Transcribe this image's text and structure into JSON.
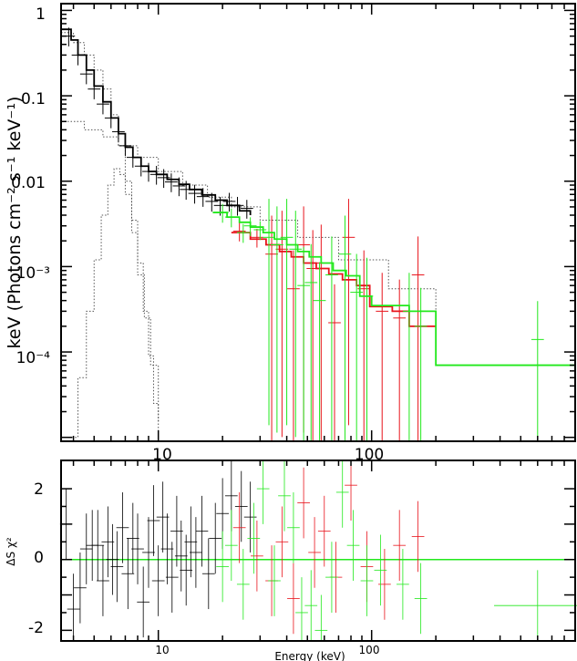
{
  "colors": {
    "black_data": "#000000",
    "red_data": "#e8141c",
    "green_data": "#22e81c",
    "model_dotted": "#555555",
    "zero_line": "#22e81c"
  },
  "chart_data": [
    {
      "type": "line",
      "panel": "spectrum",
      "xscale": "log",
      "yscale": "log",
      "xlim": [
        3.5,
        900
      ],
      "ylim": [
        9e-06,
        1.2
      ],
      "xlabel": "",
      "ylabel": "keV (Photons cm⁻² s⁻¹ keV⁻¹)",
      "xticks": [
        10,
        100
      ],
      "xtick_labels": [
        "10",
        "100"
      ],
      "yticks": [
        1,
        0.1,
        0.01,
        0.001,
        0.0001
      ],
      "ytick_labels": [
        "1",
        "0.1",
        "0.01",
        "10⁻³",
        "10⁻⁴"
      ],
      "grid": false,
      "series": [
        {
          "color": "black",
          "points": [
            [
              3.8,
              0.5
            ],
            [
              4.2,
              0.3
            ],
            [
              4.6,
              0.18
            ],
            [
              5.0,
              0.12
            ],
            [
              5.5,
              0.08
            ],
            [
              6.0,
              0.055
            ],
            [
              6.5,
              0.038
            ],
            [
              7.0,
              0.026
            ],
            [
              7.6,
              0.019
            ],
            [
              8.3,
              0.015
            ],
            [
              9.0,
              0.013
            ],
            [
              9.8,
              0.012
            ],
            [
              10.6,
              0.011
            ],
            [
              11.5,
              0.0098
            ],
            [
              12.5,
              0.0088
            ],
            [
              13.5,
              0.008
            ],
            [
              14.8,
              0.0072
            ],
            [
              16.2,
              0.0066
            ],
            [
              17.8,
              0.0058
            ],
            [
              19.5,
              0.0052
            ],
            [
              21.5,
              0.0058
            ],
            [
              23.5,
              0.0052
            ],
            [
              26.0,
              0.0048
            ]
          ],
          "model_steps": [
            [
              3.5,
              0.6
            ],
            [
              3.9,
              0.45
            ],
            [
              4.2,
              0.3
            ],
            [
              4.6,
              0.2
            ],
            [
              5.0,
              0.13
            ],
            [
              5.5,
              0.085
            ],
            [
              6.0,
              0.055
            ],
            [
              6.5,
              0.036
            ],
            [
              7.0,
              0.025
            ],
            [
              7.6,
              0.019
            ],
            [
              8.3,
              0.015
            ],
            [
              9.0,
              0.013
            ],
            [
              9.8,
              0.012
            ],
            [
              11.0,
              0.0105
            ],
            [
              12.5,
              0.0092
            ],
            [
              14.0,
              0.008
            ],
            [
              16.0,
              0.0069
            ],
            [
              18.5,
              0.006
            ],
            [
              21.0,
              0.0052
            ],
            [
              24.0,
              0.0045
            ],
            [
              27.0,
              0.004
            ]
          ]
        },
        {
          "color": "red",
          "points": [
            [
              24.0,
              0.0026
            ],
            [
              29.0,
              0.0022
            ],
            [
              34.0,
              0.0014
            ],
            [
              38.0,
              0.0016
            ],
            [
              43.0,
              0.00055
            ],
            [
              48.0,
              0.0018
            ],
            [
              53.0,
              0.00095
            ],
            [
              58.0,
              0.0011
            ],
            [
              67.0,
              0.00022
            ],
            [
              78.0,
              0.0022
            ],
            [
              92.0,
              0.00055
            ],
            [
              112.0,
              0.0003
            ],
            [
              135.0,
              0.00025
            ],
            [
              165.0,
              0.0008
            ]
          ],
          "model_steps": [
            [
              22.0,
              0.0025
            ],
            [
              27.0,
              0.0021
            ],
            [
              32.0,
              0.0018
            ],
            [
              37.0,
              0.0015
            ],
            [
              42.0,
              0.0013
            ],
            [
              48.0,
              0.0011
            ],
            [
              55.0,
              0.00095
            ],
            [
              63.0,
              0.00082
            ],
            [
              73.0,
              0.0007
            ],
            [
              85.0,
              0.0006
            ],
            [
              98.0,
              0.00034
            ],
            [
              125.0,
              0.0003
            ],
            [
              150.0,
              0.0002
            ],
            [
              200.0,
              0.0002
            ]
          ]
        },
        {
          "color": "green",
          "points": [
            [
              20.0,
              0.0043
            ],
            [
              22.0,
              0.0038
            ],
            [
              25.0,
              0.0025
            ],
            [
              27.0,
              0.003
            ],
            [
              30.0,
              0.0027
            ],
            [
              33.0,
              0.0022
            ],
            [
              36.0,
              0.0018
            ],
            [
              40.0,
              0.0022
            ],
            [
              44.0,
              0.0016
            ],
            [
              48.0,
              0.0006
            ],
            [
              52.0,
              0.00065
            ],
            [
              57.0,
              0.0004
            ],
            [
              65.0,
              0.0008
            ],
            [
              75.0,
              0.0014
            ],
            [
              85.0,
              0.0005
            ],
            [
              95.0,
              0.00045
            ],
            [
              150.0,
              0.0003
            ],
            [
              170.0,
              0.0002
            ],
            [
              600.0,
              0.00014
            ]
          ],
          "model_steps": [
            [
              18.0,
              0.0043
            ],
            [
              21.0,
              0.0038
            ],
            [
              24.0,
              0.0033
            ],
            [
              27.0,
              0.0029
            ],
            [
              31.0,
              0.0025
            ],
            [
              35.0,
              0.0021
            ],
            [
              40.0,
              0.0018
            ],
            [
              45.0,
              0.0015
            ],
            [
              51.0,
              0.0013
            ],
            [
              58.0,
              0.0011
            ],
            [
              66.0,
              0.0009
            ],
            [
              76.0,
              0.00078
            ],
            [
              88.0,
              0.00045
            ],
            [
              100.0,
              0.00035
            ],
            [
              150.0,
              0.0003
            ],
            [
              200.0,
              7e-05
            ],
            [
              900.0,
              7e-05
            ]
          ]
        },
        {
          "component": "dotted model components",
          "color": "dotted",
          "curves": [
            [
              [
                3.5,
                0.55
              ],
              [
                4.0,
                0.42
              ],
              [
                4.5,
                0.3
              ],
              [
                5.0,
                0.2
              ],
              [
                5.5,
                0.12
              ],
              [
                6.0,
                0.06
              ],
              [
                6.5,
                0.026
              ],
              [
                7.0,
                0.01
              ],
              [
                7.5,
                0.0035
              ],
              [
                8.0,
                0.0011
              ],
              [
                8.5,
                0.0003
              ],
              [
                9.0,
                9e-05
              ],
              [
                9.5,
                2.5e-05
              ],
              [
                10.0,
                1.2e-05
              ]
            ],
            [
              [
                3.5,
                0.05
              ],
              [
                4.5,
                0.04
              ],
              [
                5.5,
                0.033
              ],
              [
                6.5,
                0.026
              ],
              [
                8.0,
                0.019
              ],
              [
                10.0,
                0.013
              ],
              [
                13.0,
                0.009
              ],
              [
                17.0,
                0.0065
              ],
              [
                22.0,
                0.005
              ],
              [
                30.0,
                0.0035
              ],
              [
                45.0,
                0.0022
              ],
              [
                70.0,
                0.0012
              ],
              [
                120.0,
                0.00055
              ],
              [
                200.0,
                0.0003
              ]
            ],
            [
              [
                3.8,
                1e-05
              ],
              [
                4.2,
                5e-05
              ],
              [
                4.6,
                0.0003
              ],
              [
                5.0,
                0.0012
              ],
              [
                5.4,
                0.004
              ],
              [
                5.8,
                0.009
              ],
              [
                6.2,
                0.014
              ],
              [
                6.6,
                0.012
              ],
              [
                7.0,
                0.007
              ],
              [
                7.5,
                0.0025
              ],
              [
                8.0,
                0.0008
              ],
              [
                8.6,
                0.00025
              ],
              [
                9.2,
                7e-05
              ],
              [
                10.0,
                1.5e-05
              ]
            ]
          ]
        }
      ]
    },
    {
      "type": "scatter",
      "panel": "residuals",
      "xscale": "log",
      "xlim": [
        3.5,
        900
      ],
      "ylim": [
        -2.3,
        2.8
      ],
      "xlabel": "Energy (keV)",
      "ylabel": "ΔS χ²",
      "xticks": [
        10,
        100
      ],
      "xtick_labels": [
        "10",
        "100"
      ],
      "yticks": [
        2,
        0,
        -2
      ],
      "ytick_labels": [
        "2",
        "0",
        "-2"
      ],
      "reference_line": 0,
      "series": [
        {
          "color": "black",
          "points": [
            [
              3.7,
              1.0
            ],
            [
              4.0,
              -1.4
            ],
            [
              4.3,
              -0.8
            ],
            [
              4.6,
              0.3
            ],
            [
              4.9,
              0.4
            ],
            [
              5.2,
              0.4
            ],
            [
              5.5,
              -0.6
            ],
            [
              5.8,
              0.5
            ],
            [
              6.1,
              0.0
            ],
            [
              6.4,
              -0.2
            ],
            [
              6.8,
              0.9
            ],
            [
              7.2,
              -0.4
            ],
            [
              7.6,
              0.6
            ],
            [
              8.0,
              0.3
            ],
            [
              8.5,
              -1.2
            ],
            [
              9.0,
              0.2
            ],
            [
              9.5,
              1.1
            ],
            [
              10.0,
              -0.6
            ],
            [
              10.5,
              1.2
            ],
            [
              11.0,
              0.3
            ],
            [
              11.6,
              -0.5
            ],
            [
              12.2,
              0.8
            ],
            [
              12.8,
              0.1
            ],
            [
              13.5,
              -0.3
            ],
            [
              14.2,
              0.5
            ],
            [
              15.0,
              0.2
            ],
            [
              16.0,
              0.8
            ],
            [
              17.2,
              -0.4
            ],
            [
              18.5,
              0.6
            ],
            [
              20.0,
              1.3
            ],
            [
              22.0,
              1.8
            ],
            [
              24.5,
              1.5
            ],
            [
              27.0,
              1.2
            ]
          ]
        },
        {
          "color": "red",
          "points": [
            [
              24.0,
              0.9
            ],
            [
              29.0,
              0.1
            ],
            [
              34.0,
              -0.6
            ],
            [
              38.0,
              0.5
            ],
            [
              43.0,
              -1.1
            ],
            [
              48.0,
              1.6
            ],
            [
              54.0,
              0.2
            ],
            [
              60.0,
              0.8
            ],
            [
              68.0,
              -0.5
            ],
            [
              80.0,
              2.1
            ],
            [
              95.0,
              -0.2
            ],
            [
              115.0,
              -0.7
            ],
            [
              135.0,
              0.4
            ],
            [
              165.0,
              0.65
            ]
          ]
        },
        {
          "color": "green",
          "points": [
            [
              20.0,
              -0.2
            ],
            [
              22.0,
              0.4
            ],
            [
              25.0,
              -0.7
            ],
            [
              28.0,
              0.6
            ],
            [
              31.0,
              2.0
            ],
            [
              35.0,
              -0.6
            ],
            [
              39.0,
              1.8
            ],
            [
              43.0,
              0.9
            ],
            [
              47.0,
              -1.5
            ],
            [
              52.0,
              -1.3
            ],
            [
              58.0,
              -2.0
            ],
            [
              65.0,
              -0.5
            ],
            [
              73.0,
              1.9
            ],
            [
              82.0,
              0.4
            ],
            [
              95.0,
              -0.6
            ],
            [
              110.0,
              -0.3
            ],
            [
              140.0,
              -0.7
            ],
            [
              170.0,
              -1.1
            ],
            [
              600.0,
              -1.3
            ]
          ]
        }
      ]
    }
  ]
}
